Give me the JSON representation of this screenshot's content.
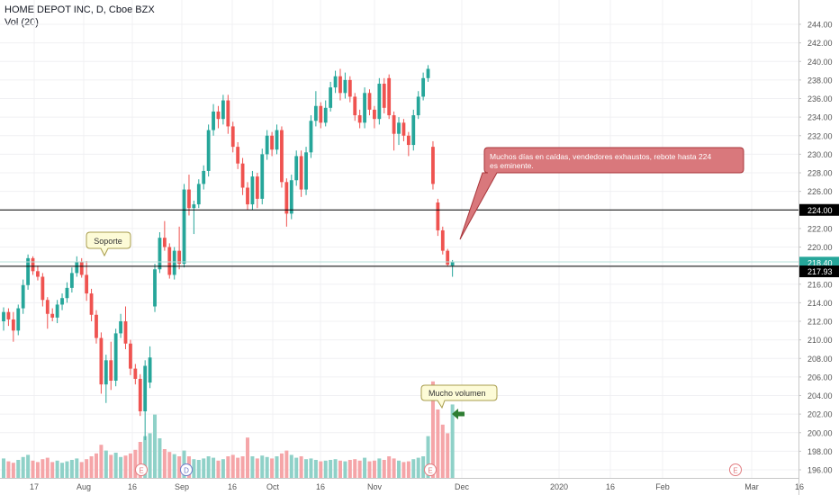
{
  "header": {
    "title": "HOME DEPOT INC, D, Cboe BZX",
    "volume_label": "Vol (20)"
  },
  "colors": {
    "up": "#26a69a",
    "down": "#ef5350",
    "vol_up": "#8fd1c8",
    "vol_down": "#f5a5a8",
    "grid": "#e6e6e6",
    "line": "#000000",
    "price_tag": "#26a69a",
    "callout_fill": "#d9787c",
    "callout_border": "#a8353a",
    "note_fill": "#fdfbd7",
    "note_border": "#a89c4c",
    "arrow": "#2e7d32",
    "earnings": "#e17c80",
    "dividend": "#6f7ac6"
  },
  "chart_data": {
    "type": "candlestick",
    "title": "HOME DEPOT INC, D, Cboe BZX",
    "y_axis": {
      "side": "right",
      "range": [
        195,
        245
      ],
      "ticks": [
        196,
        198,
        200,
        202,
        204,
        206,
        208,
        210,
        212,
        214,
        216,
        218,
        220,
        222,
        224,
        226,
        228,
        230,
        232,
        234,
        236,
        238,
        240,
        242,
        244
      ],
      "tick_labels": [
        "196.00",
        "198.00",
        "200.00",
        "202.00",
        "204.00",
        "206.00",
        "208.00",
        "210.00",
        "212.00",
        "214.00",
        "216.00",
        "218.00",
        "220.00",
        "222.00",
        "224.00",
        "226.00",
        "228.00",
        "230.00",
        "232.00",
        "234.00",
        "236.00",
        "238.00",
        "240.00",
        "242.00",
        "244.00"
      ]
    },
    "x_axis": {
      "tick_labels": [
        "17",
        "Aug",
        "16",
        "Sep",
        "16",
        "Oct",
        "16",
        "Nov",
        "Dec",
        "2020",
        "16",
        "Feb",
        "Mar",
        "16"
      ]
    },
    "candles": [
      {
        "o": 212.0,
        "h": 213.5,
        "l": 211.0,
        "c": 213.0
      },
      {
        "o": 213.0,
        "h": 213.4,
        "l": 211.5,
        "c": 212.2
      },
      {
        "o": 212.2,
        "h": 213.0,
        "l": 209.8,
        "c": 211.0
      },
      {
        "o": 211.0,
        "h": 213.8,
        "l": 210.5,
        "c": 213.4
      },
      {
        "o": 213.4,
        "h": 216.5,
        "l": 212.8,
        "c": 215.9
      },
      {
        "o": 215.9,
        "h": 219.2,
        "l": 215.4,
        "c": 218.8
      },
      {
        "o": 218.8,
        "h": 219.0,
        "l": 217.0,
        "c": 217.4
      },
      {
        "o": 217.4,
        "h": 218.0,
        "l": 216.4,
        "c": 216.8
      },
      {
        "o": 216.8,
        "h": 217.2,
        "l": 213.6,
        "c": 214.3
      },
      {
        "o": 214.3,
        "h": 214.6,
        "l": 211.2,
        "c": 212.8
      },
      {
        "o": 212.8,
        "h": 213.4,
        "l": 212.0,
        "c": 212.4
      },
      {
        "o": 212.4,
        "h": 214.3,
        "l": 211.8,
        "c": 213.8
      },
      {
        "o": 213.8,
        "h": 215.0,
        "l": 213.2,
        "c": 214.5
      },
      {
        "o": 214.5,
        "h": 216.2,
        "l": 214.0,
        "c": 215.6
      },
      {
        "o": 215.6,
        "h": 217.8,
        "l": 215.1,
        "c": 217.2
      },
      {
        "o": 217.2,
        "h": 219.0,
        "l": 216.8,
        "c": 218.4
      },
      {
        "o": 218.4,
        "h": 218.8,
        "l": 216.7,
        "c": 217.0
      },
      {
        "o": 217.0,
        "h": 218.5,
        "l": 214.2,
        "c": 215.0
      },
      {
        "o": 215.0,
        "h": 215.5,
        "l": 212.0,
        "c": 212.7
      },
      {
        "o": 212.7,
        "h": 213.2,
        "l": 209.6,
        "c": 210.2
      },
      {
        "o": 210.2,
        "h": 210.8,
        "l": 204.2,
        "c": 205.2
      },
      {
        "o": 205.2,
        "h": 208.4,
        "l": 203.2,
        "c": 207.8
      },
      {
        "o": 207.8,
        "h": 209.8,
        "l": 204.6,
        "c": 205.6
      },
      {
        "o": 205.6,
        "h": 211.2,
        "l": 205.0,
        "c": 210.7
      },
      {
        "o": 210.7,
        "h": 212.8,
        "l": 210.2,
        "c": 212.0
      },
      {
        "o": 212.0,
        "h": 213.6,
        "l": 209.0,
        "c": 209.6
      },
      {
        "o": 209.6,
        "h": 210.0,
        "l": 206.2,
        "c": 206.9
      },
      {
        "o": 206.9,
        "h": 207.4,
        "l": 205.2,
        "c": 205.8
      },
      {
        "o": 205.8,
        "h": 206.3,
        "l": 201.8,
        "c": 202.3
      },
      {
        "o": 202.3,
        "h": 207.8,
        "l": 199.2,
        "c": 207.2
      },
      {
        "o": 205.4,
        "h": 209.3,
        "l": 204.8,
        "c": 208.1
      },
      {
        "o": 213.6,
        "h": 218.2,
        "l": 213.0,
        "c": 217.6
      },
      {
        "o": 217.6,
        "h": 221.6,
        "l": 217.2,
        "c": 221.0
      },
      {
        "o": 221.0,
        "h": 222.8,
        "l": 219.6,
        "c": 220.0
      },
      {
        "o": 220.0,
        "h": 220.4,
        "l": 216.6,
        "c": 217.0
      },
      {
        "o": 217.0,
        "h": 220.0,
        "l": 216.5,
        "c": 219.6
      },
      {
        "o": 219.6,
        "h": 222.2,
        "l": 217.6,
        "c": 218.2
      },
      {
        "o": 218.2,
        "h": 226.8,
        "l": 217.8,
        "c": 226.2
      },
      {
        "o": 226.2,
        "h": 227.8,
        "l": 223.4,
        "c": 224.2
      },
      {
        "o": 224.2,
        "h": 225.0,
        "l": 221.4,
        "c": 224.6
      },
      {
        "o": 224.6,
        "h": 227.3,
        "l": 224.2,
        "c": 226.8
      },
      {
        "o": 226.8,
        "h": 228.8,
        "l": 226.2,
        "c": 228.2
      },
      {
        "o": 228.2,
        "h": 233.2,
        "l": 227.6,
        "c": 232.6
      },
      {
        "o": 232.6,
        "h": 235.4,
        "l": 232.0,
        "c": 234.6
      },
      {
        "o": 234.6,
        "h": 235.2,
        "l": 232.8,
        "c": 233.8
      },
      {
        "o": 233.8,
        "h": 236.4,
        "l": 233.2,
        "c": 235.8
      },
      {
        "o": 235.8,
        "h": 236.4,
        "l": 232.2,
        "c": 233.0
      },
      {
        "o": 233.0,
        "h": 233.5,
        "l": 230.2,
        "c": 230.8
      },
      {
        "o": 230.8,
        "h": 231.3,
        "l": 228.4,
        "c": 229.0
      },
      {
        "o": 229.0,
        "h": 229.6,
        "l": 225.6,
        "c": 226.4
      },
      {
        "o": 226.4,
        "h": 227.0,
        "l": 224.0,
        "c": 224.6
      },
      {
        "o": 224.6,
        "h": 228.2,
        "l": 224.0,
        "c": 227.6
      },
      {
        "o": 227.6,
        "h": 228.0,
        "l": 224.2,
        "c": 225.2
      },
      {
        "o": 225.2,
        "h": 230.6,
        "l": 224.6,
        "c": 230.0
      },
      {
        "o": 230.0,
        "h": 232.6,
        "l": 229.4,
        "c": 232.0
      },
      {
        "o": 232.0,
        "h": 232.4,
        "l": 229.8,
        "c": 230.5
      },
      {
        "o": 230.5,
        "h": 233.2,
        "l": 230.0,
        "c": 232.6
      },
      {
        "o": 232.6,
        "h": 233.0,
        "l": 226.4,
        "c": 227.0
      },
      {
        "o": 227.0,
        "h": 227.4,
        "l": 222.2,
        "c": 223.6
      },
      {
        "o": 223.6,
        "h": 227.8,
        "l": 223.0,
        "c": 227.2
      },
      {
        "o": 227.2,
        "h": 230.4,
        "l": 226.6,
        "c": 229.8
      },
      {
        "o": 229.8,
        "h": 230.4,
        "l": 225.4,
        "c": 226.2
      },
      {
        "o": 226.2,
        "h": 230.8,
        "l": 225.6,
        "c": 230.2
      },
      {
        "o": 230.2,
        "h": 234.2,
        "l": 229.6,
        "c": 233.6
      },
      {
        "o": 233.6,
        "h": 236.8,
        "l": 233.0,
        "c": 235.2
      },
      {
        "o": 235.2,
        "h": 235.6,
        "l": 232.8,
        "c": 233.4
      },
      {
        "o": 233.4,
        "h": 235.8,
        "l": 233.0,
        "c": 235.0
      },
      {
        "o": 235.0,
        "h": 237.8,
        "l": 234.6,
        "c": 237.2
      },
      {
        "o": 237.2,
        "h": 239.0,
        "l": 236.6,
        "c": 238.4
      },
      {
        "o": 238.4,
        "h": 239.2,
        "l": 235.8,
        "c": 236.6
      },
      {
        "o": 236.6,
        "h": 238.8,
        "l": 236.0,
        "c": 238.0
      },
      {
        "o": 238.0,
        "h": 238.4,
        "l": 235.6,
        "c": 236.2
      },
      {
        "o": 236.2,
        "h": 236.6,
        "l": 233.6,
        "c": 234.2
      },
      {
        "o": 234.2,
        "h": 234.8,
        "l": 232.8,
        "c": 233.4
      },
      {
        "o": 233.4,
        "h": 237.2,
        "l": 232.8,
        "c": 236.6
      },
      {
        "o": 236.6,
        "h": 237.0,
        "l": 234.2,
        "c": 234.8
      },
      {
        "o": 234.8,
        "h": 235.2,
        "l": 232.8,
        "c": 233.8
      },
      {
        "o": 233.8,
        "h": 238.2,
        "l": 233.2,
        "c": 237.6
      },
      {
        "o": 237.6,
        "h": 238.2,
        "l": 234.4,
        "c": 235.0
      },
      {
        "o": 238.2,
        "h": 238.6,
        "l": 233.8,
        "c": 234.2
      },
      {
        "o": 234.2,
        "h": 234.6,
        "l": 230.4,
        "c": 232.2
      },
      {
        "o": 232.2,
        "h": 234.0,
        "l": 231.0,
        "c": 233.4
      },
      {
        "o": 233.4,
        "h": 233.8,
        "l": 231.4,
        "c": 232.0
      },
      {
        "o": 232.0,
        "h": 232.4,
        "l": 229.8,
        "c": 231.0
      },
      {
        "o": 231.0,
        "h": 234.8,
        "l": 230.4,
        "c": 234.2
      },
      {
        "o": 234.2,
        "h": 236.8,
        "l": 233.8,
        "c": 236.2
      },
      {
        "o": 236.2,
        "h": 238.8,
        "l": 235.8,
        "c": 238.2
      },
      {
        "o": 238.2,
        "h": 239.6,
        "l": 237.8,
        "c": 239.2
      },
      {
        "o": 230.8,
        "h": 231.4,
        "l": 226.2,
        "c": 226.8
      },
      {
        "o": 224.8,
        "h": 225.2,
        "l": 221.2,
        "c": 221.8
      },
      {
        "o": 221.8,
        "h": 222.2,
        "l": 219.2,
        "c": 219.6
      },
      {
        "o": 219.6,
        "h": 219.8,
        "l": 217.9,
        "c": 218.1
      },
      {
        "o": 218.0,
        "h": 218.6,
        "l": 216.8,
        "c": 218.4
      }
    ],
    "volume": [
      {
        "v": 27,
        "up": true
      },
      {
        "v": 23,
        "up": false
      },
      {
        "v": 21,
        "up": false
      },
      {
        "v": 25,
        "up": true
      },
      {
        "v": 29,
        "up": true
      },
      {
        "v": 32,
        "up": true
      },
      {
        "v": 24,
        "up": false
      },
      {
        "v": 22,
        "up": false
      },
      {
        "v": 26,
        "up": false
      },
      {
        "v": 28,
        "up": false
      },
      {
        "v": 22,
        "up": false
      },
      {
        "v": 24,
        "up": true
      },
      {
        "v": 21,
        "up": true
      },
      {
        "v": 23,
        "up": true
      },
      {
        "v": 25,
        "up": true
      },
      {
        "v": 27,
        "up": true
      },
      {
        "v": 22,
        "up": false
      },
      {
        "v": 26,
        "up": false
      },
      {
        "v": 30,
        "up": false
      },
      {
        "v": 34,
        "up": false
      },
      {
        "v": 46,
        "up": false
      },
      {
        "v": 38,
        "up": true
      },
      {
        "v": 32,
        "up": false
      },
      {
        "v": 35,
        "up": true
      },
      {
        "v": 29,
        "up": true
      },
      {
        "v": 31,
        "up": false
      },
      {
        "v": 34,
        "up": false
      },
      {
        "v": 39,
        "up": false
      },
      {
        "v": 50,
        "up": false
      },
      {
        "v": 58,
        "up": true
      },
      {
        "v": 62,
        "up": true
      },
      {
        "v": 88,
        "up": true
      },
      {
        "v": 55,
        "up": true
      },
      {
        "v": 40,
        "up": false
      },
      {
        "v": 36,
        "up": false
      },
      {
        "v": 33,
        "up": true
      },
      {
        "v": 30,
        "up": false
      },
      {
        "v": 38,
        "up": true
      },
      {
        "v": 30,
        "up": false
      },
      {
        "v": 26,
        "up": true
      },
      {
        "v": 25,
        "up": true
      },
      {
        "v": 27,
        "up": true
      },
      {
        "v": 30,
        "up": true
      },
      {
        "v": 28,
        "up": true
      },
      {
        "v": 24,
        "up": false
      },
      {
        "v": 26,
        "up": true
      },
      {
        "v": 30,
        "up": false
      },
      {
        "v": 32,
        "up": false
      },
      {
        "v": 28,
        "up": false
      },
      {
        "v": 30,
        "up": false
      },
      {
        "v": 56,
        "up": false
      },
      {
        "v": 30,
        "up": true
      },
      {
        "v": 27,
        "up": false
      },
      {
        "v": 31,
        "up": true
      },
      {
        "v": 29,
        "up": true
      },
      {
        "v": 27,
        "up": false
      },
      {
        "v": 30,
        "up": true
      },
      {
        "v": 34,
        "up": false
      },
      {
        "v": 38,
        "up": false
      },
      {
        "v": 32,
        "up": true
      },
      {
        "v": 28,
        "up": true
      },
      {
        "v": 30,
        "up": false
      },
      {
        "v": 26,
        "up": true
      },
      {
        "v": 27,
        "up": true
      },
      {
        "v": 25,
        "up": true
      },
      {
        "v": 23,
        "up": false
      },
      {
        "v": 24,
        "up": true
      },
      {
        "v": 25,
        "up": true
      },
      {
        "v": 26,
        "up": true
      },
      {
        "v": 24,
        "up": false
      },
      {
        "v": 23,
        "up": true
      },
      {
        "v": 25,
        "up": false
      },
      {
        "v": 26,
        "up": false
      },
      {
        "v": 24,
        "up": false
      },
      {
        "v": 28,
        "up": true
      },
      {
        "v": 23,
        "up": false
      },
      {
        "v": 24,
        "up": false
      },
      {
        "v": 27,
        "up": true
      },
      {
        "v": 25,
        "up": false
      },
      {
        "v": 30,
        "up": false
      },
      {
        "v": 27,
        "up": false
      },
      {
        "v": 24,
        "up": true
      },
      {
        "v": 22,
        "up": false
      },
      {
        "v": 23,
        "up": false
      },
      {
        "v": 26,
        "up": true
      },
      {
        "v": 28,
        "up": true
      },
      {
        "v": 30,
        "up": true
      },
      {
        "v": 58,
        "up": true
      },
      {
        "v": 134,
        "up": false
      },
      {
        "v": 95,
        "up": false
      },
      {
        "v": 74,
        "up": false
      },
      {
        "v": 62,
        "up": false
      },
      {
        "v": 102,
        "up": true
      }
    ],
    "horizontal_lines": [
      {
        "price": 224.0,
        "label": "224.00"
      },
      {
        "price": 217.93,
        "label": "217.93"
      }
    ],
    "last_price": {
      "price": 218.4,
      "label": "218.40"
    },
    "annotations": {
      "callout": "Muchos días en caídas, vendedores exhaustos, rebote hasta 224 es eminente.",
      "support_note": "Soporte",
      "volume_note": "Mucho volumen"
    },
    "event_markers": [
      {
        "label": "E",
        "kind": "earnings"
      },
      {
        "label": "D",
        "kind": "dividend"
      },
      {
        "label": "E",
        "kind": "earnings"
      },
      {
        "label": "E",
        "kind": "earnings"
      }
    ]
  }
}
